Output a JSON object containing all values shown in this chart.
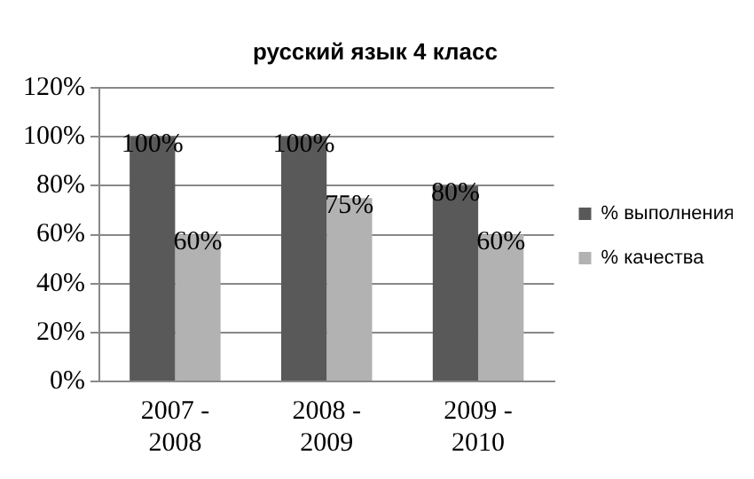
{
  "chart_data": {
    "type": "bar",
    "title": "русский язык 4 класс",
    "categories": [
      "2007 - 2008",
      "2008 - 2009",
      "2009 - 2010"
    ],
    "series": [
      {
        "name": "% выполнения",
        "color": "#595959",
        "values": [
          100,
          100,
          80
        ],
        "value_labels": [
          "100%",
          "100%",
          "80%"
        ]
      },
      {
        "name": "% качества",
        "color": "#b2b2b2",
        "values": [
          60,
          75,
          60
        ],
        "value_labels": [
          "60%",
          "75%",
          "60%"
        ]
      }
    ],
    "ylim": [
      0,
      120
    ],
    "yticks": [
      {
        "value": 0,
        "label": "0%"
      },
      {
        "value": 20,
        "label": "20%"
      },
      {
        "value": 40,
        "label": "40%"
      },
      {
        "value": 60,
        "label": "60%"
      },
      {
        "value": 80,
        "label": "80%"
      },
      {
        "value": 100,
        "label": "100%"
      },
      {
        "value": 120,
        "label": "120%"
      }
    ],
    "grid": "y",
    "legend": "right"
  }
}
